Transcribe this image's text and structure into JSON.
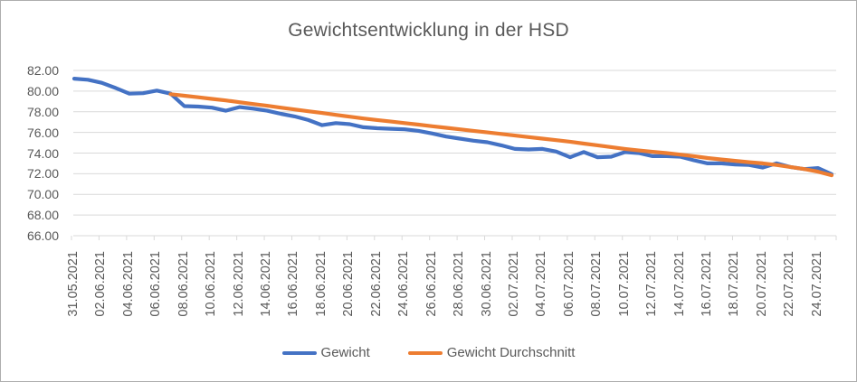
{
  "chart_data": {
    "type": "line",
    "title": "Gewichtsentwicklung in der HSD",
    "xlabel": "",
    "ylabel": "",
    "ylim": [
      66,
      82
    ],
    "y_step": 2,
    "grid": true,
    "legend_position": "bottom",
    "x_days_total": 55,
    "y_tick_labels": [
      "82.00",
      "80.00",
      "78.00",
      "76.00",
      "74.00",
      "72.00",
      "70.00",
      "68.00",
      "66.00"
    ],
    "x_tick_labels": [
      "31.05.2021",
      "02.06.2021",
      "04.06.2021",
      "06.06.2021",
      "08.06.2021",
      "10.06.2021",
      "12.06.2021",
      "14.06.2021",
      "16.06.2021",
      "18.06.2021",
      "20.06.2021",
      "22.06.2021",
      "24.06.2021",
      "26.06.2021",
      "28.06.2021",
      "30.06.2021",
      "02.07.2021",
      "04.07.2021",
      "06.07.2021",
      "08.07.2021",
      "10.07.2021",
      "12.07.2021",
      "14.07.2021",
      "16.07.2021",
      "18.07.2021",
      "20.07.2021",
      "22.07.2021",
      "24.07.2021"
    ],
    "x_tick_interval_days": 2,
    "series": [
      {
        "name": "Gewicht",
        "color": "#4472C4",
        "start_day": 0,
        "values": [
          81.2,
          81.1,
          80.8,
          80.3,
          79.75,
          79.8,
          80.05,
          79.75,
          78.55,
          78.5,
          78.4,
          78.1,
          78.45,
          78.3,
          78.1,
          77.8,
          77.55,
          77.2,
          76.7,
          76.9,
          76.8,
          76.5,
          76.4,
          76.35,
          76.3,
          76.15,
          75.9,
          75.6,
          75.4,
          75.2,
          75.05,
          74.75,
          74.4,
          74.35,
          74.4,
          74.15,
          73.6,
          74.1,
          73.6,
          73.65,
          74.1,
          74.0,
          73.7,
          73.7,
          73.65,
          73.3,
          73.0,
          73.0,
          72.9,
          72.85,
          72.6,
          73.0,
          72.65,
          72.45,
          72.55,
          71.95
        ]
      },
      {
        "name": "Gewicht Durchschnitt",
        "color": "#ED7D31",
        "start_day": 7,
        "values": [
          79.7,
          79.55,
          79.4,
          79.25,
          79.1,
          78.92,
          78.75,
          78.58,
          78.4,
          78.22,
          78.05,
          77.88,
          77.7,
          77.52,
          77.35,
          77.2,
          77.05,
          76.9,
          76.75,
          76.6,
          76.45,
          76.3,
          76.15,
          76.0,
          75.85,
          75.7,
          75.55,
          75.4,
          75.25,
          75.1,
          74.92,
          74.75,
          74.58,
          74.4,
          74.25,
          74.12,
          74.0,
          73.85,
          73.7,
          73.52,
          73.38,
          73.25,
          73.12,
          73.0,
          72.85,
          72.65,
          72.45,
          72.2,
          71.85
        ]
      }
    ],
    "colors": {
      "gridline": "#D9D9D9",
      "axis": "#D9D9D9",
      "text": "#595959",
      "series_blue": "#4472C4",
      "series_orange": "#ED7D31"
    }
  }
}
